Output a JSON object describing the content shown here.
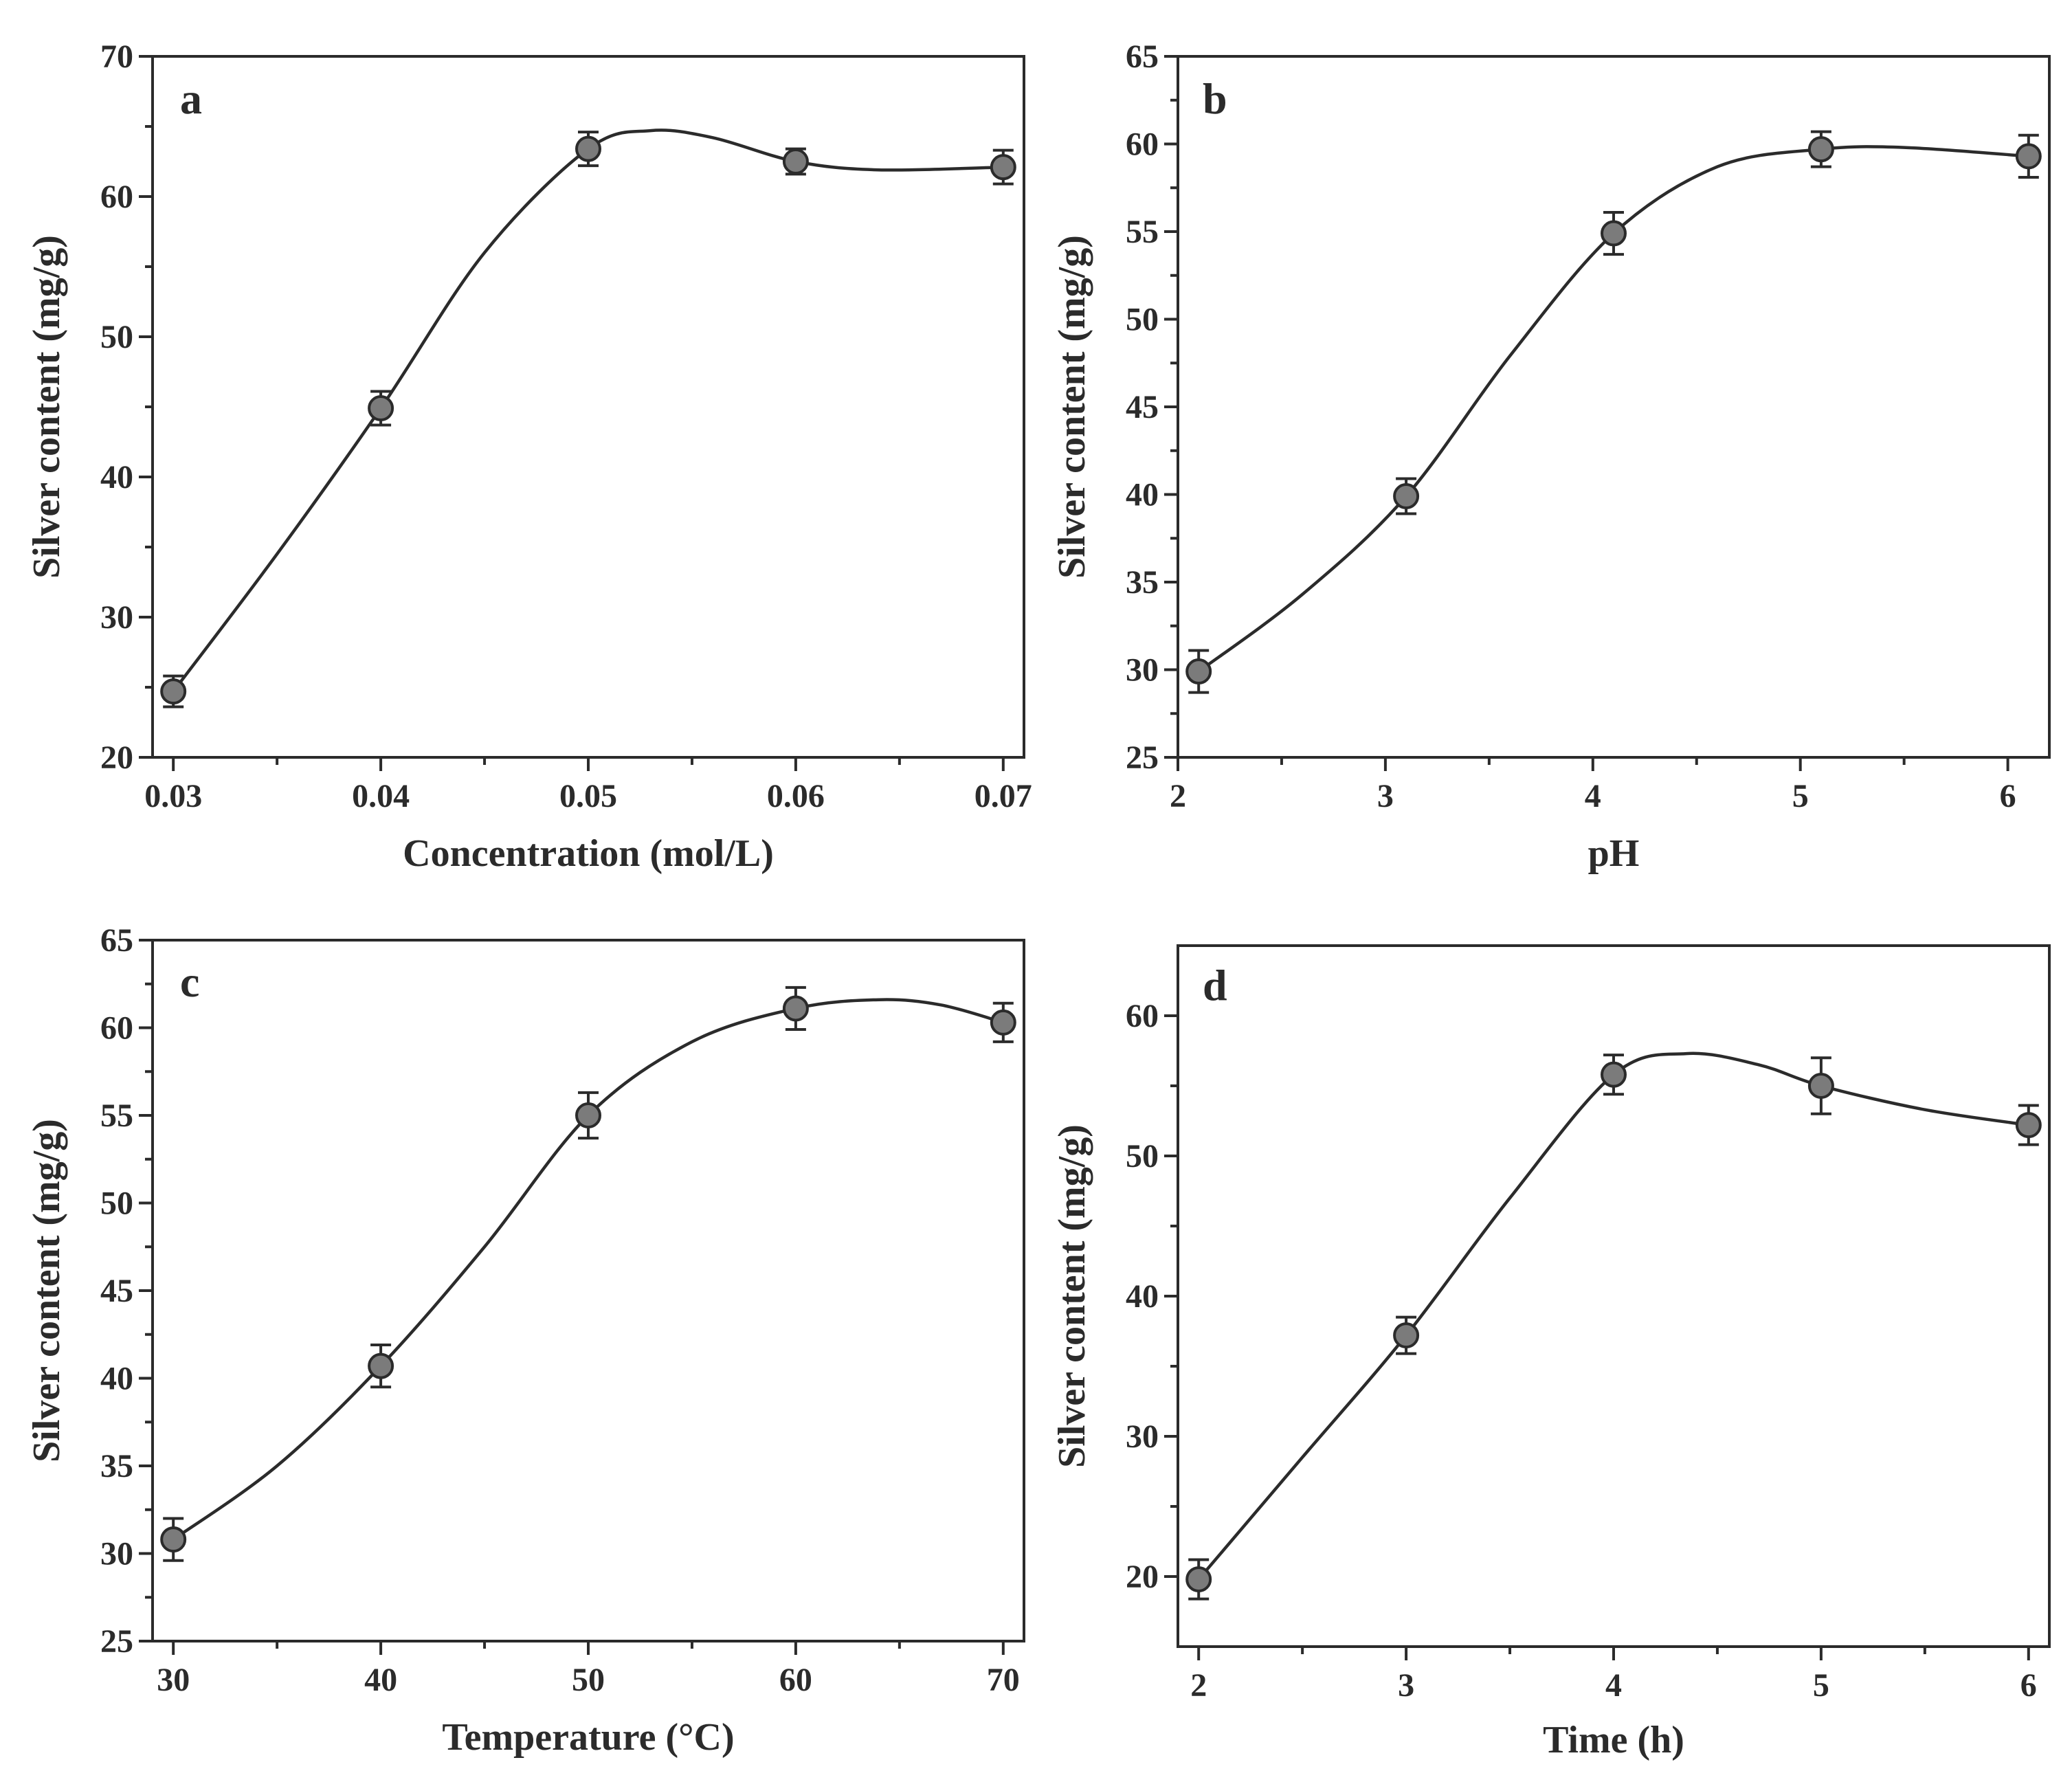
{
  "chart_data": [
    {
      "type": "scatter",
      "panel": "a",
      "xlabel": "Concentration (mol/L)",
      "ylabel": "Silver content (mg/g)",
      "xlim": [
        0.029,
        0.071
      ],
      "ylim": [
        20,
        70
      ],
      "xticks": [
        "0.03",
        "0.04",
        "0.05",
        "0.06",
        "0.07"
      ],
      "yticks": [
        "20",
        "30",
        "40",
        "50",
        "60",
        "70"
      ],
      "x": [
        0.03,
        0.04,
        0.05,
        0.06,
        0.07
      ],
      "values": [
        24.7,
        44.9,
        63.4,
        62.5,
        62.1
      ],
      "errors": [
        1.1,
        1.2,
        1.2,
        0.9,
        1.2
      ],
      "curve": {
        "x": [
          0.03,
          0.035,
          0.04,
          0.045,
          0.05,
          0.053,
          0.056,
          0.06,
          0.064,
          0.07
        ],
        "y": [
          24.7,
          34.5,
          44.9,
          56.0,
          63.4,
          64.7,
          64.2,
          62.5,
          61.9,
          62.1
        ]
      }
    },
    {
      "type": "scatter",
      "panel": "b",
      "xlabel": "pH",
      "ylabel": "Silver content (mg/g)",
      "xlim": [
        2,
        6.2
      ],
      "ylim": [
        25,
        65
      ],
      "xticks": [
        "2",
        "3",
        "4",
        "5",
        "6"
      ],
      "yticks": [
        "25",
        "30",
        "35",
        "40",
        "45",
        "50",
        "55",
        "60",
        "65"
      ],
      "x": [
        2.1,
        3.1,
        4.1,
        5.1,
        6.1
      ],
      "values": [
        29.9,
        39.9,
        54.9,
        59.7,
        59.3
      ],
      "errors": [
        1.2,
        1.0,
        1.2,
        1.0,
        1.2
      ],
      "curve": {
        "x": [
          2.1,
          2.6,
          3.1,
          3.6,
          4.1,
          4.6,
          5.1,
          5.5,
          6.1
        ],
        "y": [
          29.9,
          34.3,
          39.9,
          47.9,
          54.9,
          58.7,
          59.7,
          59.8,
          59.3
        ]
      }
    },
    {
      "type": "scatter",
      "panel": "c",
      "xlabel": "Temperature (°C)",
      "ylabel": "Silver content (mg/g)",
      "xlim": [
        29,
        71
      ],
      "ylim": [
        25,
        65
      ],
      "xticks": [
        "30",
        "40",
        "50",
        "60",
        "70"
      ],
      "yticks": [
        "25",
        "30",
        "35",
        "40",
        "45",
        "50",
        "55",
        "60",
        "65"
      ],
      "x": [
        30,
        40,
        50,
        60,
        70
      ],
      "values": [
        30.8,
        40.7,
        55.0,
        61.1,
        60.3
      ],
      "errors": [
        1.2,
        1.2,
        1.3,
        1.2,
        1.1
      ],
      "curve": {
        "x": [
          30,
          35,
          40,
          45,
          50,
          55,
          60,
          64,
          67,
          70
        ],
        "y": [
          30.8,
          35.0,
          40.7,
          47.5,
          55.0,
          59.2,
          61.1,
          61.6,
          61.3,
          60.3
        ]
      }
    },
    {
      "type": "scatter",
      "panel": "d",
      "xlabel": "Time (h)",
      "ylabel": "Silver content (mg/g)",
      "xlim": [
        1.9,
        6.1
      ],
      "ylim": [
        15,
        65
      ],
      "xticks": [
        "2",
        "3",
        "4",
        "5",
        "6"
      ],
      "yticks": [
        "20",
        "30",
        "40",
        "50",
        "60"
      ],
      "x": [
        2,
        3,
        4,
        5,
        6
      ],
      "values": [
        19.8,
        37.2,
        55.8,
        55.0,
        52.2
      ],
      "errors": [
        1.4,
        1.3,
        1.4,
        2.0,
        1.4
      ],
      "curve": {
        "x": [
          2,
          2.5,
          3,
          3.5,
          4,
          4.35,
          4.7,
          5,
          5.5,
          6
        ],
        "y": [
          19.8,
          28.5,
          37.2,
          47.0,
          55.8,
          57.3,
          56.5,
          55.0,
          53.3,
          52.2
        ]
      }
    }
  ]
}
